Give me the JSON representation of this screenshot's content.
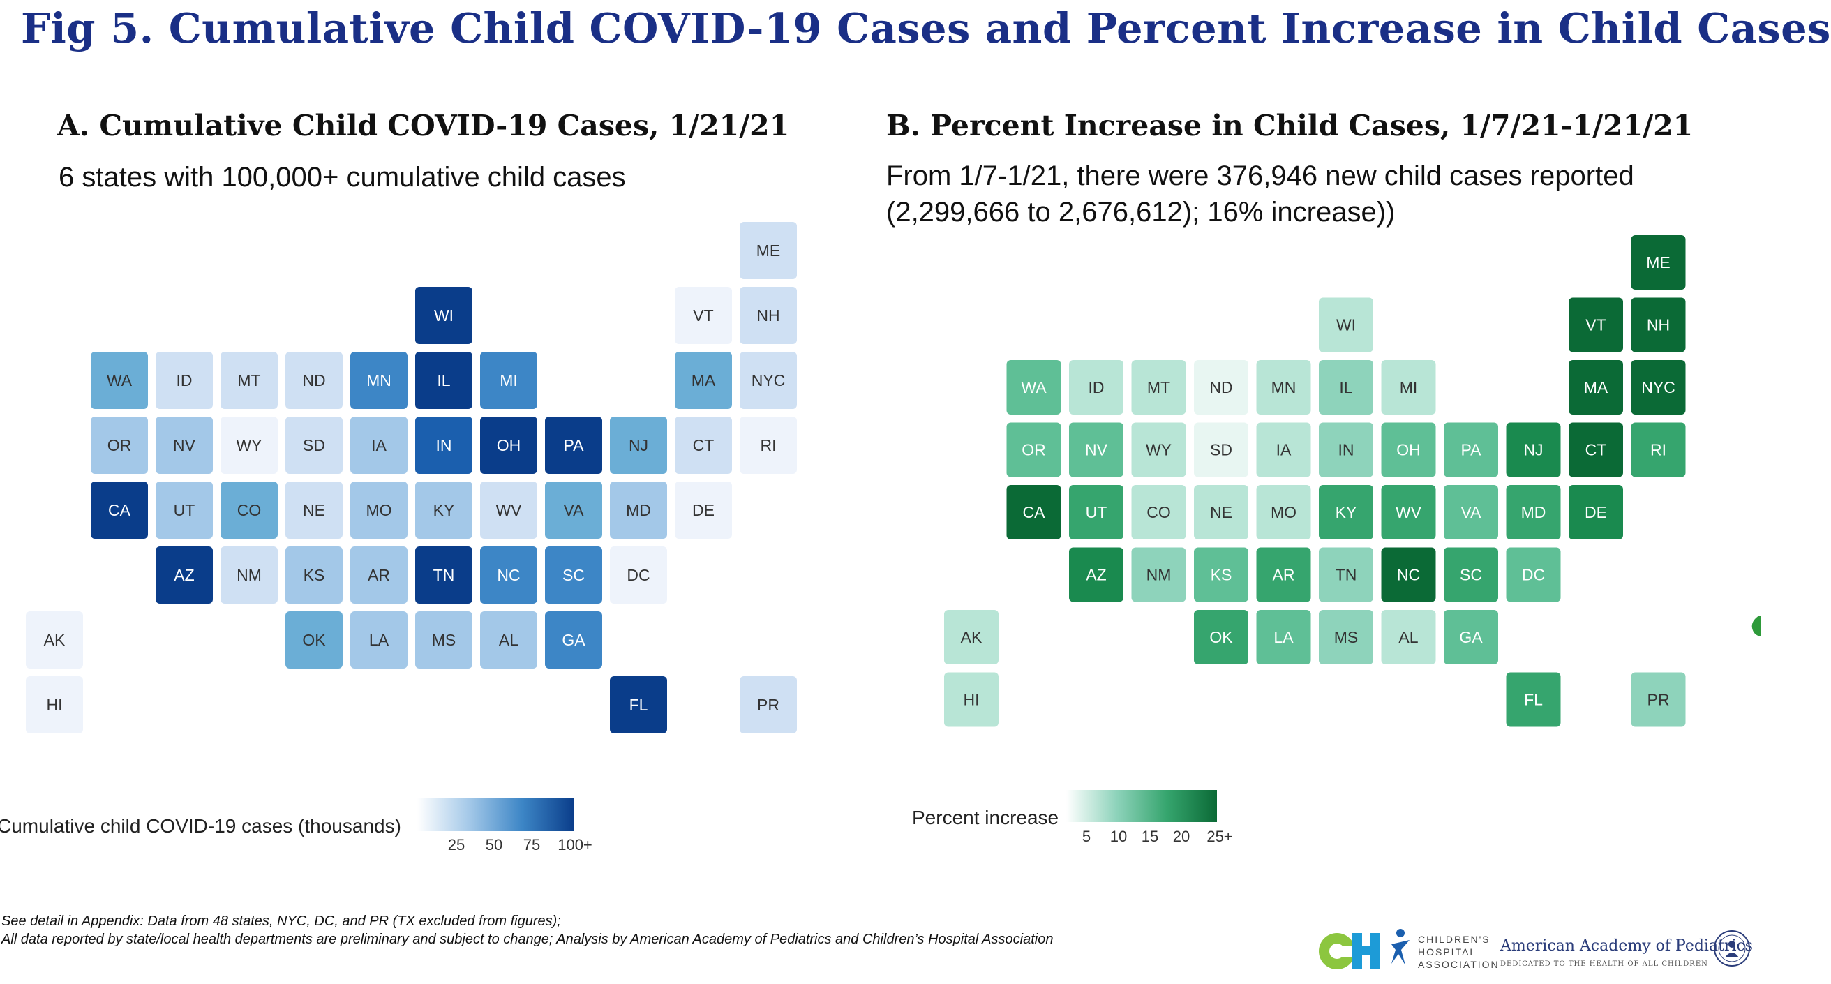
{
  "page": {
    "title": "Fig 5. Cumulative Child COVID-19 Cases and Percent Increase in Child Cases",
    "footnotes": [
      "See detail in Appendix: Data from 48 states, NYC, DC, and PR (TX excluded from figures);",
      "All data reported by state/local health departments are preliminary and subject to change; Analysis by American Academy of Pediatrics and Children’s Hospital Association"
    ],
    "logos": {
      "cha_text": [
        "CHILDREN'S",
        "HOSPITAL",
        "ASSOCIATION"
      ],
      "aap_name": "American Academy of Pediatrics",
      "aap_tagline": "DEDICATED TO THE HEALTH OF ALL CHILDREN"
    }
  },
  "chart_data": [
    {
      "type": "heatmap",
      "layout": "tile-grid-map",
      "title": "A. Cumulative Child COVID-19 Cases, 1/21/21",
      "subtitle": "6 states with 100,000+ cumulative child cases",
      "legend_title": "Cumulative child COVID-19 cases (thousands)",
      "legend_ticks": [
        "25",
        "50",
        "75",
        "100+"
      ],
      "color_scale": [
        "#eef3fb",
        "#cfe0f3",
        "#a3c8e8",
        "#6baed6",
        "#3d86c6",
        "#1b5fae",
        "#0a3d8a"
      ],
      "tiles": [
        {
          "state": "ME",
          "col": 11,
          "row": 0,
          "level": 1
        },
        {
          "state": "WI",
          "col": 6,
          "row": 1,
          "level": 6
        },
        {
          "state": "VT",
          "col": 10,
          "row": 1,
          "level": 0
        },
        {
          "state": "NH",
          "col": 11,
          "row": 1,
          "level": 1
        },
        {
          "state": "WA",
          "col": 1,
          "row": 2,
          "level": 3
        },
        {
          "state": "ID",
          "col": 2,
          "row": 2,
          "level": 1
        },
        {
          "state": "MT",
          "col": 3,
          "row": 2,
          "level": 1
        },
        {
          "state": "ND",
          "col": 4,
          "row": 2,
          "level": 1
        },
        {
          "state": "MN",
          "col": 5,
          "row": 2,
          "level": 4
        },
        {
          "state": "IL",
          "col": 6,
          "row": 2,
          "level": 6
        },
        {
          "state": "MI",
          "col": 7,
          "row": 2,
          "level": 4
        },
        {
          "state": "MA",
          "col": 10,
          "row": 2,
          "level": 3
        },
        {
          "state": "NYC",
          "col": 11,
          "row": 2,
          "level": 1
        },
        {
          "state": "OR",
          "col": 1,
          "row": 3,
          "level": 2
        },
        {
          "state": "NV",
          "col": 2,
          "row": 3,
          "level": 2
        },
        {
          "state": "WY",
          "col": 3,
          "row": 3,
          "level": 0
        },
        {
          "state": "SD",
          "col": 4,
          "row": 3,
          "level": 1
        },
        {
          "state": "IA",
          "col": 5,
          "row": 3,
          "level": 2
        },
        {
          "state": "IN",
          "col": 6,
          "row": 3,
          "level": 5
        },
        {
          "state": "OH",
          "col": 7,
          "row": 3,
          "level": 6
        },
        {
          "state": "PA",
          "col": 8,
          "row": 3,
          "level": 6
        },
        {
          "state": "NJ",
          "col": 9,
          "row": 3,
          "level": 3
        },
        {
          "state": "CT",
          "col": 10,
          "row": 3,
          "level": 1
        },
        {
          "state": "RI",
          "col": 11,
          "row": 3,
          "level": 0
        },
        {
          "state": "CA",
          "col": 1,
          "row": 4,
          "level": 6
        },
        {
          "state": "UT",
          "col": 2,
          "row": 4,
          "level": 2
        },
        {
          "state": "CO",
          "col": 3,
          "row": 4,
          "level": 3
        },
        {
          "state": "NE",
          "col": 4,
          "row": 4,
          "level": 1
        },
        {
          "state": "MO",
          "col": 5,
          "row": 4,
          "level": 2
        },
        {
          "state": "KY",
          "col": 6,
          "row": 4,
          "level": 2
        },
        {
          "state": "WV",
          "col": 7,
          "row": 4,
          "level": 1
        },
        {
          "state": "VA",
          "col": 8,
          "row": 4,
          "level": 3
        },
        {
          "state": "MD",
          "col": 9,
          "row": 4,
          "level": 2
        },
        {
          "state": "DE",
          "col": 10,
          "row": 4,
          "level": 0
        },
        {
          "state": "AZ",
          "col": 2,
          "row": 5,
          "level": 6
        },
        {
          "state": "NM",
          "col": 3,
          "row": 5,
          "level": 1
        },
        {
          "state": "KS",
          "col": 4,
          "row": 5,
          "level": 2
        },
        {
          "state": "AR",
          "col": 5,
          "row": 5,
          "level": 2
        },
        {
          "state": "TN",
          "col": 6,
          "row": 5,
          "level": 6
        },
        {
          "state": "NC",
          "col": 7,
          "row": 5,
          "level": 4
        },
        {
          "state": "SC",
          "col": 8,
          "row": 5,
          "level": 4
        },
        {
          "state": "DC",
          "col": 9,
          "row": 5,
          "level": 0
        },
        {
          "state": "AK",
          "col": 0,
          "row": 6,
          "level": 0
        },
        {
          "state": "OK",
          "col": 4,
          "row": 6,
          "level": 3
        },
        {
          "state": "LA",
          "col": 5,
          "row": 6,
          "level": 2
        },
        {
          "state": "MS",
          "col": 6,
          "row": 6,
          "level": 2
        },
        {
          "state": "AL",
          "col": 7,
          "row": 6,
          "level": 2
        },
        {
          "state": "GA",
          "col": 8,
          "row": 6,
          "level": 4
        },
        {
          "state": "HI",
          "col": 0,
          "row": 7,
          "level": 0
        },
        {
          "state": "FL",
          "col": 9,
          "row": 7,
          "level": 6
        },
        {
          "state": "PR",
          "col": 11,
          "row": 7,
          "level": 1
        }
      ]
    },
    {
      "type": "heatmap",
      "layout": "tile-grid-map",
      "title": "B. Percent Increase in Child Cases, 1/7/21-1/21/21",
      "subtitle": [
        "From 1/7-1/21, there were 376,946 new child cases reported",
        "(2,299,666 to 2,676,612); 16% increase))"
      ],
      "legend_title": "Percent increase",
      "legend_ticks": [
        "5",
        "10",
        "15",
        "20",
        "25+"
      ],
      "color_scale": [
        "#e8f6f2",
        "#b8e5d6",
        "#8ed3bb",
        "#5fbf96",
        "#36a56e",
        "#1a8a4f",
        "#0b6a36"
      ],
      "tiles": [
        {
          "state": "ME",
          "col": 11,
          "row": 0,
          "level": 6
        },
        {
          "state": "WI",
          "col": 6,
          "row": 1,
          "level": 1
        },
        {
          "state": "VT",
          "col": 10,
          "row": 1,
          "level": 6
        },
        {
          "state": "NH",
          "col": 11,
          "row": 1,
          "level": 6
        },
        {
          "state": "WA",
          "col": 1,
          "row": 2,
          "level": 3
        },
        {
          "state": "ID",
          "col": 2,
          "row": 2,
          "level": 1
        },
        {
          "state": "MT",
          "col": 3,
          "row": 2,
          "level": 1
        },
        {
          "state": "ND",
          "col": 4,
          "row": 2,
          "level": 0
        },
        {
          "state": "MN",
          "col": 5,
          "row": 2,
          "level": 1
        },
        {
          "state": "IL",
          "col": 6,
          "row": 2,
          "level": 2
        },
        {
          "state": "MI",
          "col": 7,
          "row": 2,
          "level": 1
        },
        {
          "state": "MA",
          "col": 10,
          "row": 2,
          "level": 6
        },
        {
          "state": "NYC",
          "col": 11,
          "row": 2,
          "level": 6
        },
        {
          "state": "OR",
          "col": 1,
          "row": 3,
          "level": 3
        },
        {
          "state": "NV",
          "col": 2,
          "row": 3,
          "level": 3
        },
        {
          "state": "WY",
          "col": 3,
          "row": 3,
          "level": 1
        },
        {
          "state": "SD",
          "col": 4,
          "row": 3,
          "level": 0
        },
        {
          "state": "IA",
          "col": 5,
          "row": 3,
          "level": 1
        },
        {
          "state": "IN",
          "col": 6,
          "row": 3,
          "level": 2
        },
        {
          "state": "OH",
          "col": 7,
          "row": 3,
          "level": 3
        },
        {
          "state": "PA",
          "col": 8,
          "row": 3,
          "level": 3
        },
        {
          "state": "NJ",
          "col": 9,
          "row": 3,
          "level": 5
        },
        {
          "state": "CT",
          "col": 10,
          "row": 3,
          "level": 6
        },
        {
          "state": "RI",
          "col": 11,
          "row": 3,
          "level": 4
        },
        {
          "state": "CA",
          "col": 1,
          "row": 4,
          "level": 6
        },
        {
          "state": "UT",
          "col": 2,
          "row": 4,
          "level": 4
        },
        {
          "state": "CO",
          "col": 3,
          "row": 4,
          "level": 1
        },
        {
          "state": "NE",
          "col": 4,
          "row": 4,
          "level": 1
        },
        {
          "state": "MO",
          "col": 5,
          "row": 4,
          "level": 1
        },
        {
          "state": "KY",
          "col": 6,
          "row": 4,
          "level": 4
        },
        {
          "state": "WV",
          "col": 7,
          "row": 4,
          "level": 4
        },
        {
          "state": "VA",
          "col": 8,
          "row": 4,
          "level": 3
        },
        {
          "state": "MD",
          "col": 9,
          "row": 4,
          "level": 4
        },
        {
          "state": "DE",
          "col": 10,
          "row": 4,
          "level": 5
        },
        {
          "state": "AZ",
          "col": 2,
          "row": 5,
          "level": 5
        },
        {
          "state": "NM",
          "col": 3,
          "row": 5,
          "level": 2
        },
        {
          "state": "KS",
          "col": 4,
          "row": 5,
          "level": 3
        },
        {
          "state": "AR",
          "col": 5,
          "row": 5,
          "level": 4
        },
        {
          "state": "TN",
          "col": 6,
          "row": 5,
          "level": 2
        },
        {
          "state": "NC",
          "col": 7,
          "row": 5,
          "level": 6
        },
        {
          "state": "SC",
          "col": 8,
          "row": 5,
          "level": 4
        },
        {
          "state": "DC",
          "col": 9,
          "row": 5,
          "level": 3
        },
        {
          "state": "AK",
          "col": 0,
          "row": 6,
          "level": 1
        },
        {
          "state": "OK",
          "col": 4,
          "row": 6,
          "level": 4
        },
        {
          "state": "LA",
          "col": 5,
          "row": 6,
          "level": 3
        },
        {
          "state": "MS",
          "col": 6,
          "row": 6,
          "level": 2
        },
        {
          "state": "AL",
          "col": 7,
          "row": 6,
          "level": 1
        },
        {
          "state": "GA",
          "col": 8,
          "row": 6,
          "level": 3
        },
        {
          "state": "HI",
          "col": 0,
          "row": 7,
          "level": 1
        },
        {
          "state": "FL",
          "col": 9,
          "row": 7,
          "level": 4
        },
        {
          "state": "PR",
          "col": 11,
          "row": 7,
          "level": 2
        }
      ]
    }
  ]
}
